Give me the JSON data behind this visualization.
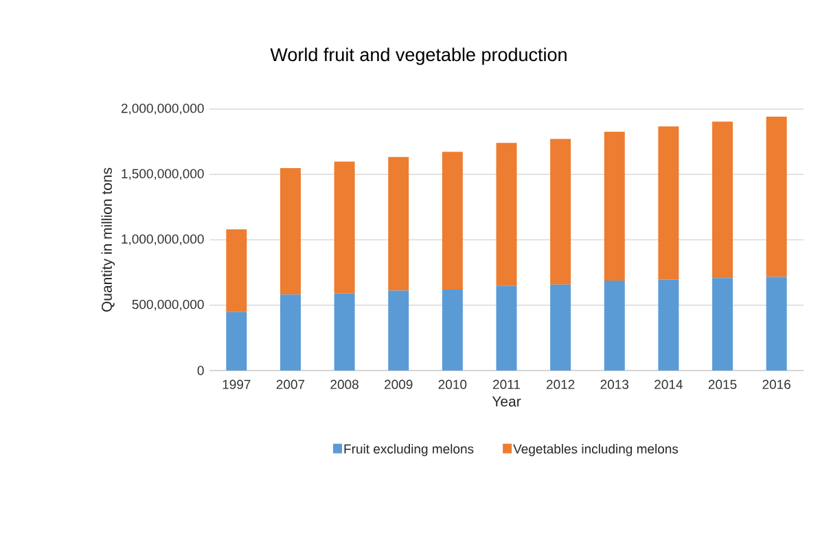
{
  "chart_data": {
    "type": "bar",
    "title": "World fruit and vegetable production",
    "xlabel": "Year",
    "ylabel": "Quantity in million tons",
    "categories": [
      "1997",
      "2007",
      "2008",
      "2009",
      "2010",
      "2011",
      "2012",
      "2013",
      "2014",
      "2015",
      "2016"
    ],
    "series": [
      {
        "name": "Fruit excluding melons",
        "color": "#5b9bd5",
        "values": [
          448000000,
          581000000,
          591000000,
          611000000,
          619000000,
          647000000,
          658000000,
          688000000,
          696000000,
          707000000,
          716000000
        ]
      },
      {
        "name": "Vegetables including melons",
        "color": "#ed7d31",
        "values": [
          632000000,
          968000000,
          1007000000,
          1023000000,
          1054000000,
          1094000000,
          1113000000,
          1139000000,
          1171000000,
          1197000000,
          1226000000
        ]
      }
    ],
    "stacked": true,
    "ylim": [
      0,
      2000000000
    ],
    "yticks": [
      {
        "value": 0,
        "label": "0"
      },
      {
        "value": 500000000,
        "label": "500,000,000"
      },
      {
        "value": 1000000000,
        "label": "1,000,000,000"
      },
      {
        "value": 1500000000,
        "label": "1,500,000,000"
      },
      {
        "value": 2000000000,
        "label": "2,000,000,000"
      }
    ],
    "grid": "y",
    "legend": "bottom"
  }
}
